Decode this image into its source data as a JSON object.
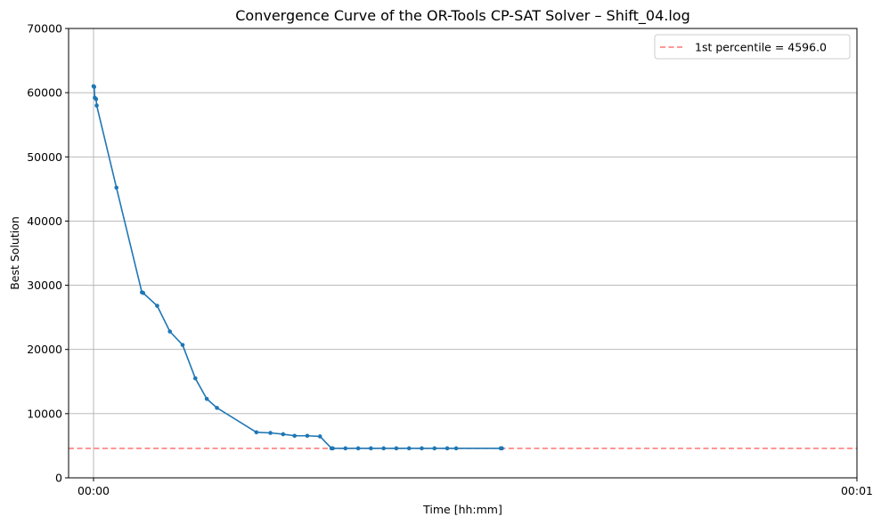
{
  "chart_data": {
    "type": "line",
    "title": "Convergence Curve of the OR-Tools CP-SAT Solver – Shift_04.log",
    "xlabel": "Time [hh:mm]",
    "ylabel": "Best Solution",
    "xlim_seconds": [
      0,
      60
    ],
    "xticks": [
      {
        "value": 0,
        "label": "00:00"
      },
      {
        "value": 60,
        "label": "00:01"
      }
    ],
    "ylim": [
      0,
      70000
    ],
    "yticks": [
      {
        "value": 0,
        "label": "0"
      },
      {
        "value": 10000,
        "label": "10000"
      },
      {
        "value": 20000,
        "label": "20000"
      },
      {
        "value": 30000,
        "label": "30000"
      },
      {
        "value": 40000,
        "label": "40000"
      },
      {
        "value": 50000,
        "label": "50000"
      },
      {
        "value": 60000,
        "label": "60000"
      },
      {
        "value": 70000,
        "label": "70000"
      }
    ],
    "grid": "horizontal major lines, vertical line at 00:00",
    "legend_position": "top-right",
    "series": [
      {
        "color": "#1f77b4",
        "x_seconds": [
          0.0,
          0.05,
          0.1,
          0.2,
          0.25,
          1.8,
          3.8,
          3.9,
          5.0,
          6.0,
          7.0,
          8.0,
          8.9,
          9.7,
          12.8,
          13.9,
          14.9,
          15.8,
          16.8,
          17.8,
          18.7,
          18.8,
          19.8,
          20.8,
          21.8,
          22.8,
          23.8,
          24.8,
          25.8,
          26.8,
          27.8,
          28.5,
          32.0,
          32.1
        ],
        "y": [
          61000,
          60900,
          59200,
          59000,
          58000,
          45200,
          28900,
          28800,
          26800,
          22800,
          20700,
          15500,
          12300,
          10900,
          7100,
          7000,
          6800,
          6550,
          6550,
          6450,
          4596,
          4596,
          4596,
          4596,
          4596,
          4596,
          4596,
          4596,
          4596,
          4596,
          4596,
          4596,
          4596,
          4596
        ]
      }
    ],
    "reference_line": {
      "label": "1st percentile  = 4596.0",
      "y": 4596.0,
      "color": "#ff0000",
      "opacity": 0.55,
      "style": "dashed"
    }
  }
}
